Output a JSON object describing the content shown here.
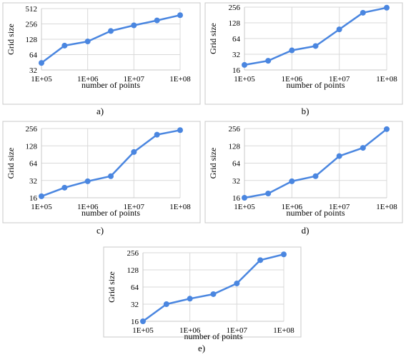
{
  "chart_data": [
    {
      "type": "line",
      "panel_label": "a)",
      "xlabel": "number of points",
      "ylabel": "Grid size",
      "x_scale": "log",
      "y_scale": "log2",
      "x_ticks": [
        "1E+05",
        "1E+06",
        "1E+07",
        "1E+08"
      ],
      "y_ticks": [
        32,
        64,
        128,
        256,
        512
      ],
      "grid": true,
      "x": [
        100000,
        316228,
        1000000,
        3162278,
        10000000,
        31622777,
        100000000
      ],
      "y": [
        44,
        96,
        116,
        186,
        240,
        300,
        380
      ]
    },
    {
      "type": "line",
      "panel_label": "b)",
      "xlabel": "number of points",
      "ylabel": "Grid size",
      "x_scale": "log",
      "y_scale": "log2",
      "x_ticks": [
        "1E+05",
        "1E+06",
        "1E+07",
        "1E+08"
      ],
      "y_ticks": [
        16,
        32,
        64,
        128,
        256
      ],
      "grid": true,
      "x": [
        100000,
        316228,
        1000000,
        3162278,
        10000000,
        31622777,
        100000000
      ],
      "y": [
        20,
        24,
        38,
        46,
        96,
        200,
        250
      ]
    },
    {
      "type": "line",
      "panel_label": "c)",
      "xlabel": "number of points",
      "ylabel": "Grid size",
      "x_scale": "log",
      "y_scale": "log2",
      "x_ticks": [
        "1E+05",
        "1E+06",
        "1E+07",
        "1E+08"
      ],
      "y_ticks": [
        16,
        32,
        64,
        128,
        256
      ],
      "grid": true,
      "x": [
        100000,
        316228,
        1000000,
        3162278,
        10000000,
        31622777,
        100000000
      ],
      "y": [
        17,
        24,
        31,
        38,
        100,
        200,
        240
      ]
    },
    {
      "type": "line",
      "panel_label": "d)",
      "xlabel": "number of points",
      "ylabel": "Grid size",
      "x_scale": "log",
      "y_scale": "log2",
      "x_ticks": [
        "1E+05",
        "1E+06",
        "1E+07",
        "1E+08"
      ],
      "y_ticks": [
        16,
        32,
        64,
        128,
        256
      ],
      "grid": true,
      "x": [
        100000,
        316228,
        1000000,
        3162278,
        10000000,
        31622777,
        100000000
      ],
      "y": [
        16,
        19,
        31,
        38,
        85,
        118,
        250
      ]
    },
    {
      "type": "line",
      "panel_label": "e)",
      "xlabel": "number of points",
      "ylabel": "Grid size",
      "x_scale": "log",
      "y_scale": "log2",
      "x_ticks": [
        "1E+05",
        "1E+06",
        "1E+07",
        "1E+08"
      ],
      "y_ticks": [
        16,
        32,
        64,
        128,
        256
      ],
      "grid": true,
      "x": [
        100000,
        316228,
        1000000,
        3162278,
        10000000,
        31622777,
        100000000
      ],
      "y": [
        16,
        32,
        40,
        48,
        74,
        190,
        240
      ]
    }
  ],
  "style": {
    "series_color": "#4a86e0",
    "grid_color": "#d9d9d9",
    "frame_color": "#c8c8c8"
  }
}
